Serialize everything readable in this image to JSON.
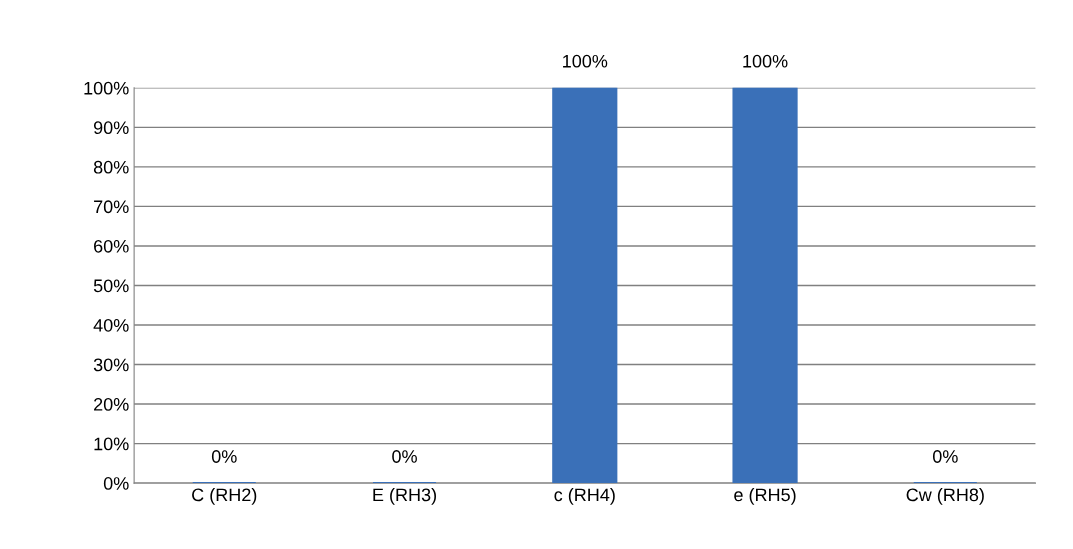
{
  "chart_data": {
    "type": "bar",
    "categories": [
      "C (RH2)",
      "E (RH3)",
      "c (RH4)",
      "e (RH5)",
      "Cw (RH8)"
    ],
    "values": [
      0,
      0,
      100,
      100,
      0
    ],
    "color": "#3a70b8",
    "value_labels": [
      "0%",
      "0%",
      "100%",
      "100%",
      "0%"
    ],
    "ylim": [
      0,
      100
    ],
    "yticks": [
      {
        "value": 0,
        "label": "0%"
      },
      {
        "value": 10,
        "label": "10%"
      },
      {
        "value": 20,
        "label": "20%"
      },
      {
        "value": 30,
        "label": "30%"
      },
      {
        "value": 40,
        "label": "40%"
      },
      {
        "value": 50,
        "label": "50%"
      },
      {
        "value": 60,
        "label": "60%"
      },
      {
        "value": 70,
        "label": "70%"
      },
      {
        "value": 80,
        "label": "80%"
      },
      {
        "value": 90,
        "label": "90%"
      },
      {
        "value": 100,
        "label": "100%"
      }
    ],
    "grid": "y",
    "legend": false
  }
}
